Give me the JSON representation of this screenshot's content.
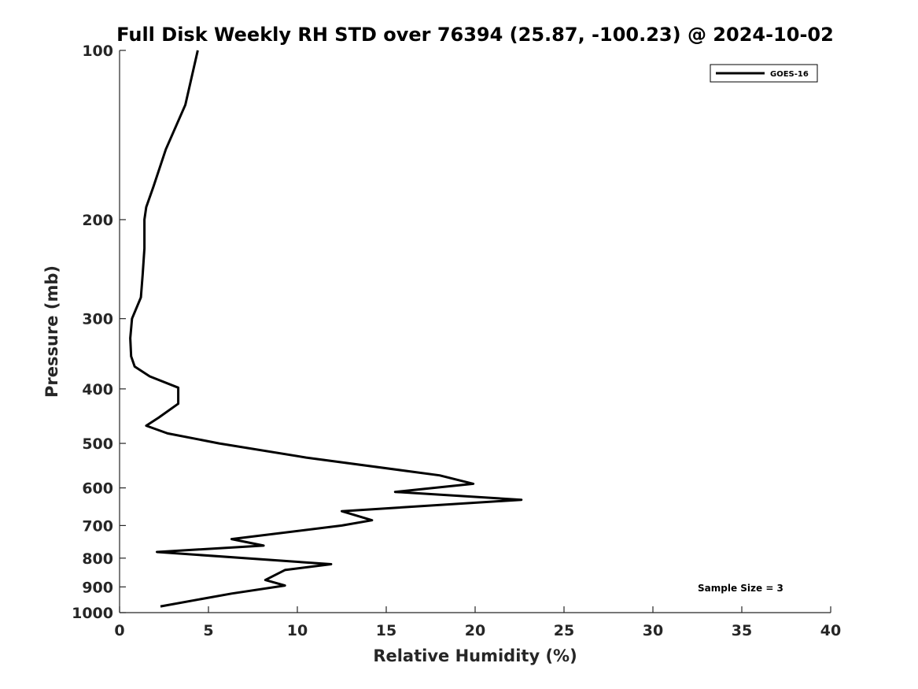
{
  "chart_data": {
    "type": "line",
    "title": "Full Disk Weekly RH STD over 76394 (25.87, -100.23) @ 2024-10-02",
    "xlabel": "Relative Humidity (%)",
    "ylabel": "Pressure (mb)",
    "xlim": [
      0,
      40
    ],
    "ylim": [
      100,
      1000
    ],
    "y_scale": "log",
    "y_reversed": true,
    "grid": false,
    "x_ticks": [
      "0",
      "5",
      "10",
      "15",
      "20",
      "25",
      "30",
      "35",
      "40"
    ],
    "y_ticks": [
      "100",
      "200",
      "300",
      "400",
      "500",
      "600",
      "700",
      "800",
      "900",
      "1000"
    ],
    "legend": {
      "position": "top-right",
      "entries": [
        "GOES-16"
      ]
    },
    "annotation": "Sample Size = 3",
    "series": [
      {
        "name": "GOES-16",
        "color": "#000000",
        "x": [
          4.4,
          3.7,
          2.6,
          1.9,
          1.5,
          1.4,
          1.4,
          1.3,
          1.2,
          0.7,
          0.6,
          0.65,
          0.85,
          1.7,
          3.3,
          3.3,
          2.2,
          1.5,
          2.7,
          5.6,
          10.5,
          18.0,
          19.9,
          15.5,
          22.6,
          12.5,
          14.2,
          12.5,
          6.3,
          8.1,
          2.1,
          11.9,
          9.3,
          8.2,
          9.3,
          6.3,
          2.3
        ],
        "y": [
          100,
          125,
          150,
          175,
          190,
          200,
          225,
          250,
          275,
          300,
          325,
          350,
          365,
          380,
          398,
          425,
          450,
          465,
          480,
          500,
          530,
          570,
          590,
          610,
          630,
          660,
          685,
          700,
          740,
          760,
          780,
          820,
          840,
          875,
          895,
          925,
          975
        ]
      }
    ]
  }
}
